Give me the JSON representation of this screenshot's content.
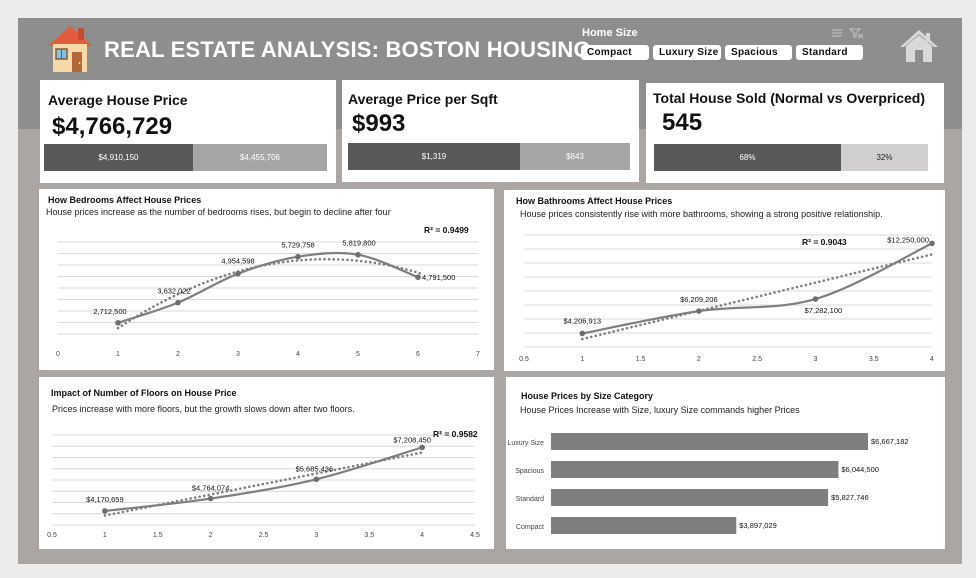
{
  "app": {
    "title": "REAL ESTATE ANALYSIS: BOSTON HOUSING"
  },
  "slicer": {
    "title": "Home Size",
    "options": [
      "Compact",
      "Luxury Size",
      "Spacious",
      "Standard"
    ]
  },
  "kpis": {
    "avg_price": {
      "title": "Average House Price",
      "value": "$4,766,729",
      "seg1": "$4,910,150",
      "seg2": "$4,455,706",
      "seg1_share": 0.53
    },
    "avg_sqft": {
      "title": "Average Price per Sqft",
      "value": "$993",
      "seg1": "$1,319",
      "seg2": "$843",
      "seg1_share": 0.61
    },
    "sold": {
      "title": "Total House Sold (Normal vs Overpriced)",
      "value": "545",
      "seg1": "68%",
      "seg2": "32%",
      "seg1_share": 0.68
    }
  },
  "colors": {
    "dark": "#595959",
    "mid": "#a6a6a6",
    "light": "#d0cece",
    "line": "#7f7f7f",
    "header": "#8e8e8e"
  },
  "chart_data": [
    {
      "type": "line",
      "title": "How Bedrooms Affect House Prices",
      "subtitle": "House prices increase as the number of bedrooms rises, but begin to decline after four",
      "x": [
        1,
        2,
        3,
        4,
        5,
        6
      ],
      "y": [
        2712500,
        3632022,
        4954598,
        5729758,
        5819800,
        4791500
      ],
      "labels": [
        "2,712,500",
        "3,632,022",
        "4,954,598",
        "5,729,758",
        "5,819,800",
        "4,791,500"
      ],
      "trendline": "polynomial",
      "r2_label": "R² = 0.9499",
      "xlim": [
        0,
        7
      ],
      "xticks": [
        "0",
        "1",
        "2",
        "3",
        "4",
        "5",
        "6",
        "7"
      ],
      "grid": true
    },
    {
      "type": "line",
      "title": "How Bathrooms Affect House Prices",
      "subtitle": "House prices consistently rise with more bathrooms, showing a strong positive relationship.",
      "x": [
        1,
        2,
        3,
        4
      ],
      "y": [
        4206913,
        6209206,
        7282100,
        12250000
      ],
      "labels": [
        "$4,206,913",
        "$6,209,206",
        "$7,282,100",
        "$12,250,000"
      ],
      "trendline": "linear",
      "r2_label": "R² = 0.9043",
      "xlim": [
        0.5,
        4
      ],
      "xticks": [
        "0.5",
        "1",
        "1.5",
        "2",
        "2.5",
        "3",
        "3.5",
        "4"
      ],
      "grid": true
    },
    {
      "type": "line",
      "title": "Impact of Number of Floors on House Price",
      "subtitle": "Prices increase with more floors, but the growth slows down after two floors.",
      "x": [
        1,
        2,
        3,
        4
      ],
      "y": [
        4170659,
        4764074,
        5685436,
        7208450
      ],
      "labels": [
        "$4,170,659",
        "$4,764,074",
        "$5,685,436",
        "$7,208,450"
      ],
      "trendline": "linear",
      "r2_label": "R² = 0.9582",
      "xlim": [
        0.5,
        4.5
      ],
      "xticks": [
        "0.5",
        "1",
        "1.5",
        "2",
        "2.5",
        "3",
        "3.5",
        "4",
        "4.5"
      ],
      "grid": true
    },
    {
      "type": "bar",
      "orientation": "horizontal",
      "title": "House Prices by Size Category",
      "subtitle": "House Prices Increase with Size, luxury Size commands higher Prices",
      "categories": [
        "Luxury Size",
        "Spacious",
        "Standard",
        "Compact"
      ],
      "values": [
        6667182,
        6044500,
        5827746,
        3897029
      ],
      "labels": [
        "$6,667,182",
        "$6,044,500",
        "$5,827,746",
        "$3,897,029"
      ]
    }
  ]
}
